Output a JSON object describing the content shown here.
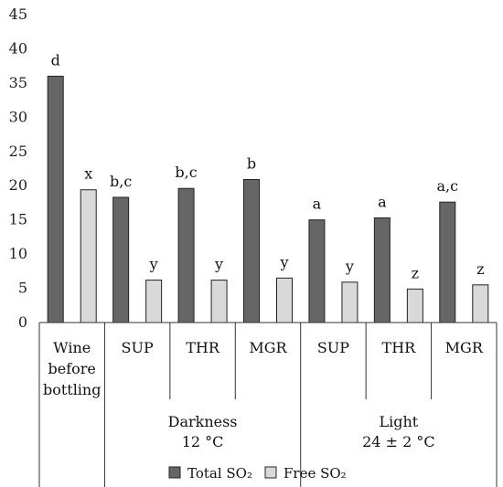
{
  "chart_data": {
    "type": "bar",
    "categories": [
      "Wine before bottling",
      "SUP",
      "THR",
      "MGR",
      "SUP",
      "THR",
      "MGR"
    ],
    "category_lines": [
      [
        "Wine",
        "before",
        "bottling"
      ],
      [
        "SUP"
      ],
      [
        "THR"
      ],
      [
        "MGR"
      ],
      [
        "SUP"
      ],
      [
        "THR"
      ],
      [
        "MGR"
      ]
    ],
    "groups": [
      {
        "lines": [
          "Darkness",
          "12 °C"
        ],
        "start": 1,
        "end": 3
      },
      {
        "lines": [
          "Light",
          "24 ± 2 °C"
        ],
        "start": 4,
        "end": 6
      }
    ],
    "series": [
      {
        "name": "Total SO₂",
        "color": "#666666",
        "values": [
          36.0,
          18.3,
          19.6,
          20.9,
          15.0,
          15.3,
          17.6
        ],
        "labels": [
          "d",
          "b,c",
          "b,c",
          "b",
          "a",
          "a",
          "a,c"
        ]
      },
      {
        "name": "Free SO₂",
        "color": "#d9d9d9",
        "values": [
          19.4,
          6.2,
          6.2,
          6.5,
          5.9,
          4.9,
          5.5
        ],
        "labels": [
          "x",
          "y",
          "y",
          "y",
          "y",
          "z",
          "z"
        ]
      }
    ],
    "yticks": [
      0,
      5,
      10,
      15,
      20,
      25,
      30,
      35,
      40,
      45
    ],
    "ylim": [
      0,
      45
    ],
    "title": "",
    "xlabel": "",
    "ylabel": "",
    "grid": false,
    "legend": "bottom"
  }
}
